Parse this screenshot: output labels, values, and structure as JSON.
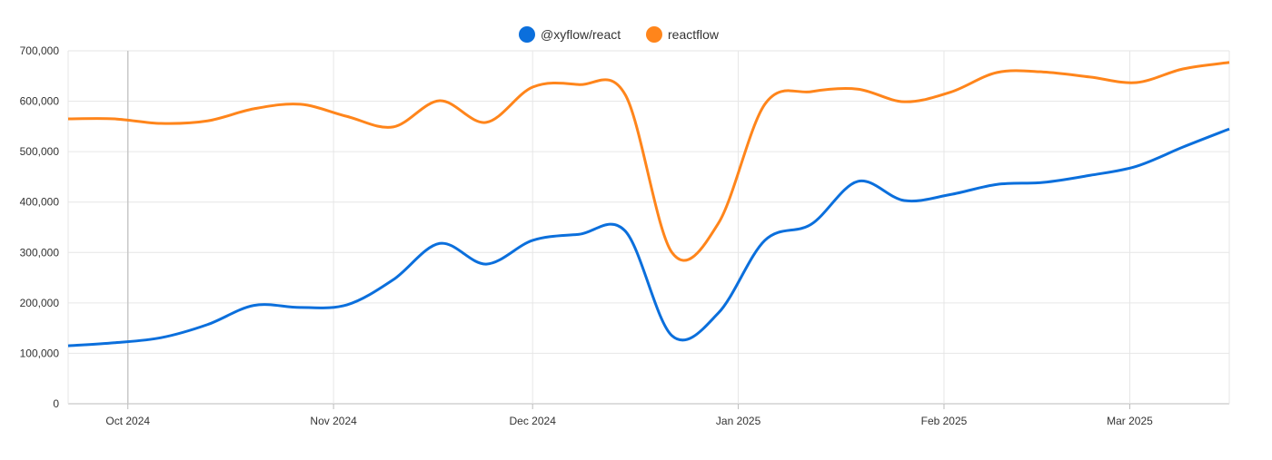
{
  "chart_data": {
    "type": "line",
    "title": "",
    "xlabel": "",
    "ylabel": "",
    "ylim": [
      0,
      700000
    ],
    "yticks": [
      "0",
      "100,000",
      "200,000",
      "300,000",
      "400,000",
      "500,000",
      "600,000",
      "700,000"
    ],
    "ytick_values": [
      0,
      100000,
      200000,
      300000,
      400000,
      500000,
      600000,
      700000
    ],
    "xlim": [
      "2024-09-22",
      "2025-03-16"
    ],
    "xticks": [
      {
        "label": "Oct 2024",
        "date": "2024-10-01"
      },
      {
        "label": "Nov 2024",
        "date": "2024-11-01"
      },
      {
        "label": "Dec 2024",
        "date": "2024-12-01"
      },
      {
        "label": "Jan 2025",
        "date": "2025-01-01"
      },
      {
        "label": "Feb 2025",
        "date": "2025-02-01"
      },
      {
        "label": "Mar 2025",
        "date": "2025-03-01"
      }
    ],
    "highlighted_x": "2024-10-01",
    "grid": true,
    "legend_position": "top-center",
    "smoothed": true,
    "x": [
      "2024-09-22",
      "2024-09-29",
      "2024-10-06",
      "2024-10-13",
      "2024-10-20",
      "2024-10-27",
      "2024-11-03",
      "2024-11-10",
      "2024-11-17",
      "2024-11-24",
      "2024-12-01",
      "2024-12-08",
      "2024-12-15",
      "2024-12-22",
      "2024-12-29",
      "2025-01-05",
      "2025-01-12",
      "2025-01-19",
      "2025-01-26",
      "2025-02-02",
      "2025-02-09",
      "2025-02-16",
      "2025-02-23",
      "2025-03-02",
      "2025-03-09",
      "2025-03-16"
    ],
    "series": [
      {
        "name": "@xyflow/react",
        "color": "#0b6fdc",
        "values": [
          115000,
          121000,
          131000,
          157000,
          195000,
          191000,
          196000,
          246000,
          318000,
          277000,
          324000,
          336000,
          342000,
          135000,
          180000,
          324000,
          356000,
          441000,
          403000,
          415000,
          435000,
          439000,
          453000,
          471000,
          509000,
          545000
        ]
      },
      {
        "name": "reactflow",
        "color": "#ff851b",
        "values": [
          565000,
          565000,
          556000,
          561000,
          585000,
          594000,
          570000,
          549000,
          601000,
          558000,
          628000,
          633000,
          612000,
          300000,
          358000,
          594000,
          619000,
          624000,
          599000,
          618000,
          657000,
          658000,
          648000,
          637000,
          664000,
          677000
        ]
      }
    ]
  }
}
